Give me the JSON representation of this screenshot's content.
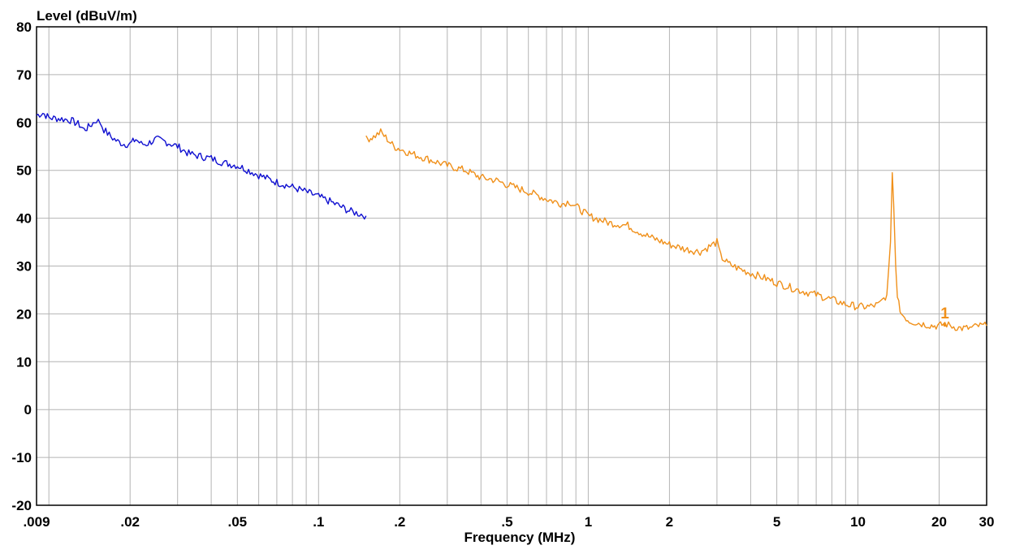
{
  "chart_data": {
    "type": "line",
    "ylabel": "Level (dBuV/m)",
    "xlabel": "Frequency (MHz)",
    "x_scale": "log",
    "xlim": [
      0.009,
      30
    ],
    "ylim": [
      -20,
      80
    ],
    "grid": true,
    "y_ticks": [
      {
        "value": 80,
        "label": "80"
      },
      {
        "value": 70,
        "label": "70"
      },
      {
        "value": 60,
        "label": "60"
      },
      {
        "value": 50,
        "label": "50"
      },
      {
        "value": 40,
        "label": "40"
      },
      {
        "value": 30,
        "label": "30"
      },
      {
        "value": 20,
        "label": "20"
      },
      {
        "value": 10,
        "label": "10"
      },
      {
        "value": 0,
        "label": "0"
      },
      {
        "value": -10,
        "label": "-10"
      },
      {
        "value": -20,
        "label": "-20"
      }
    ],
    "x_ticks": [
      {
        "value": 0.009,
        "label": ".009"
      },
      {
        "value": 0.02,
        "label": ".02"
      },
      {
        "value": 0.05,
        "label": ".05"
      },
      {
        "value": 0.1,
        "label": ".1"
      },
      {
        "value": 0.2,
        "label": ".2"
      },
      {
        "value": 0.5,
        "label": ".5"
      },
      {
        "value": 1,
        "label": "1"
      },
      {
        "value": 2,
        "label": "2"
      },
      {
        "value": 5,
        "label": "5"
      },
      {
        "value": 10,
        "label": "10"
      },
      {
        "value": 20,
        "label": "20"
      },
      {
        "value": 30,
        "label": "30"
      }
    ],
    "series": [
      {
        "color": "#1010d0",
        "points": [
          [
            0.009,
            61.5
          ],
          [
            0.0095,
            62.0
          ],
          [
            0.01,
            61.0
          ],
          [
            0.011,
            60.8
          ],
          [
            0.012,
            60.5
          ],
          [
            0.013,
            59.5
          ],
          [
            0.0135,
            58.5
          ],
          [
            0.014,
            59.0
          ],
          [
            0.015,
            60.5
          ],
          [
            0.0155,
            60.0
          ],
          [
            0.016,
            58.5
          ],
          [
            0.017,
            57.0
          ],
          [
            0.018,
            56.0
          ],
          [
            0.019,
            55.5
          ],
          [
            0.02,
            55.5
          ],
          [
            0.021,
            56.5
          ],
          [
            0.022,
            55.5
          ],
          [
            0.023,
            55.5
          ],
          [
            0.025,
            56.5
          ],
          [
            0.027,
            56.0
          ],
          [
            0.03,
            55.0
          ],
          [
            0.033,
            53.5
          ],
          [
            0.036,
            53.0
          ],
          [
            0.04,
            52.5
          ],
          [
            0.045,
            51.5
          ],
          [
            0.05,
            51.0
          ],
          [
            0.055,
            50.0
          ],
          [
            0.06,
            49.0
          ],
          [
            0.07,
            47.5
          ],
          [
            0.08,
            46.5
          ],
          [
            0.09,
            45.5
          ],
          [
            0.1,
            44.5
          ],
          [
            0.11,
            43.5
          ],
          [
            0.12,
            42.5
          ],
          [
            0.13,
            41.5
          ],
          [
            0.14,
            41.0
          ],
          [
            0.15,
            40.5
          ]
        ]
      },
      {
        "color": "#f0901a",
        "points": [
          [
            0.15,
            56.5
          ],
          [
            0.16,
            57.0
          ],
          [
            0.17,
            58.0
          ],
          [
            0.18,
            56.5
          ],
          [
            0.19,
            55.0
          ],
          [
            0.2,
            54.5
          ],
          [
            0.22,
            53.5
          ],
          [
            0.25,
            52.5
          ],
          [
            0.3,
            51.0
          ],
          [
            0.35,
            50.0
          ],
          [
            0.4,
            48.5
          ],
          [
            0.45,
            48.0
          ],
          [
            0.5,
            47.0
          ],
          [
            0.6,
            45.5
          ],
          [
            0.7,
            44.0
          ],
          [
            0.8,
            43.0
          ],
          [
            0.85,
            43.5
          ],
          [
            0.9,
            42.5
          ],
          [
            1.0,
            40.5
          ],
          [
            1.2,
            39.0
          ],
          [
            1.4,
            38.5
          ],
          [
            1.5,
            37.5
          ],
          [
            1.7,
            36.0
          ],
          [
            2.0,
            34.5
          ],
          [
            2.3,
            33.5
          ],
          [
            2.6,
            33.0
          ],
          [
            2.8,
            34.0
          ],
          [
            3.0,
            35.0
          ],
          [
            3.1,
            32.0
          ],
          [
            3.3,
            30.5
          ],
          [
            3.6,
            29.5
          ],
          [
            4.0,
            28.5
          ],
          [
            4.5,
            27.5
          ],
          [
            5.0,
            26.5
          ],
          [
            6.0,
            25.0
          ],
          [
            7.0,
            24.0
          ],
          [
            8.0,
            23.0
          ],
          [
            9.0,
            22.0
          ],
          [
            10.0,
            21.5
          ],
          [
            11.0,
            21.5
          ],
          [
            12.0,
            22.0
          ],
          [
            12.8,
            24.0
          ],
          [
            13.2,
            35.0
          ],
          [
            13.4,
            49.5
          ],
          [
            13.56,
            43.0
          ],
          [
            13.8,
            30.0
          ],
          [
            14.0,
            23.0
          ],
          [
            14.5,
            20.0
          ],
          [
            15.5,
            18.5
          ],
          [
            17.0,
            18.0
          ],
          [
            19.0,
            17.5
          ],
          [
            20.0,
            17.5
          ],
          [
            21.0,
            18.0
          ],
          [
            22.0,
            17.5
          ],
          [
            24.0,
            17.0
          ],
          [
            26.0,
            17.0
          ],
          [
            28.0,
            17.5
          ],
          [
            30.0,
            17.5
          ]
        ]
      }
    ],
    "annotations": [
      {
        "text": "1",
        "x": 21,
        "y": 18,
        "color": "#f0901a"
      }
    ]
  }
}
